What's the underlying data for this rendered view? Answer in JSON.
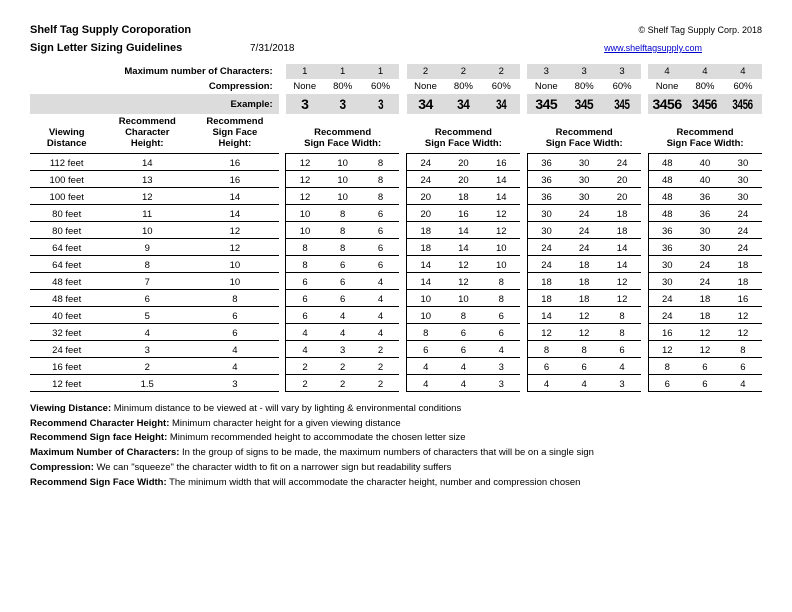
{
  "header": {
    "company": "Shelf Tag Supply Coroporation",
    "copyright": "© Shelf Tag Supply Corp. 2018",
    "subtitle": "Sign Letter Sizing Guidelines",
    "date": "7/31/2018",
    "link_text": "www.shelftagsupply.com"
  },
  "labels": {
    "max_chars": "Maximum number of Characters:",
    "compression": "Compression:",
    "example": "Example:",
    "viewing_distance": "Viewing\nDistance",
    "rec_char_height": "Recommend\nCharacter\nHeight:",
    "rec_sign_face_height": "Recommend\nSign Face\nHeight:",
    "rec_sign_face_width": "Recommend\nSign Face Width:"
  },
  "groups": [
    {
      "chars": "1",
      "compressions": [
        "None",
        "80%",
        "60%"
      ],
      "examples": [
        "3",
        "3",
        "3"
      ]
    },
    {
      "chars": "2",
      "compressions": [
        "None",
        "80%",
        "60%"
      ],
      "examples": [
        "34",
        "34",
        "34"
      ]
    },
    {
      "chars": "3",
      "compressions": [
        "None",
        "80%",
        "60%"
      ],
      "examples": [
        "345",
        "345",
        "345"
      ]
    },
    {
      "chars": "4",
      "compressions": [
        "None",
        "80%",
        "60%"
      ],
      "examples": [
        "3456",
        "3456",
        "3456"
      ]
    }
  ],
  "rows": [
    {
      "dist": "112 feet",
      "ch": "14",
      "sf": "16",
      "w": [
        [
          "12",
          "10",
          "8"
        ],
        [
          "24",
          "20",
          "16"
        ],
        [
          "36",
          "30",
          "24"
        ],
        [
          "48",
          "40",
          "30"
        ]
      ]
    },
    {
      "dist": "100 feet",
      "ch": "13",
      "sf": "16",
      "w": [
        [
          "12",
          "10",
          "8"
        ],
        [
          "24",
          "20",
          "14"
        ],
        [
          "36",
          "30",
          "20"
        ],
        [
          "48",
          "40",
          "30"
        ]
      ]
    },
    {
      "dist": "100 feet",
      "ch": "12",
      "sf": "14",
      "w": [
        [
          "12",
          "10",
          "8"
        ],
        [
          "20",
          "18",
          "14"
        ],
        [
          "36",
          "30",
          "20"
        ],
        [
          "48",
          "36",
          "30"
        ]
      ]
    },
    {
      "dist": "80 feet",
      "ch": "11",
      "sf": "14",
      "w": [
        [
          "10",
          "8",
          "6"
        ],
        [
          "20",
          "16",
          "12"
        ],
        [
          "30",
          "24",
          "18"
        ],
        [
          "48",
          "36",
          "24"
        ]
      ]
    },
    {
      "dist": "80 feet",
      "ch": "10",
      "sf": "12",
      "w": [
        [
          "10",
          "8",
          "6"
        ],
        [
          "18",
          "14",
          "12"
        ],
        [
          "30",
          "24",
          "18"
        ],
        [
          "36",
          "30",
          "24"
        ]
      ]
    },
    {
      "dist": "64 feet",
      "ch": "9",
      "sf": "12",
      "w": [
        [
          "8",
          "8",
          "6"
        ],
        [
          "18",
          "14",
          "10"
        ],
        [
          "24",
          "24",
          "14"
        ],
        [
          "36",
          "30",
          "24"
        ]
      ]
    },
    {
      "dist": "64 feet",
      "ch": "8",
      "sf": "10",
      "w": [
        [
          "8",
          "6",
          "6"
        ],
        [
          "14",
          "12",
          "10"
        ],
        [
          "24",
          "18",
          "14"
        ],
        [
          "30",
          "24",
          "18"
        ]
      ]
    },
    {
      "dist": "48 feet",
      "ch": "7",
      "sf": "10",
      "w": [
        [
          "6",
          "6",
          "4"
        ],
        [
          "14",
          "12",
          "8"
        ],
        [
          "18",
          "18",
          "12"
        ],
        [
          "30",
          "24",
          "18"
        ]
      ]
    },
    {
      "dist": "48 feet",
      "ch": "6",
      "sf": "8",
      "w": [
        [
          "6",
          "6",
          "4"
        ],
        [
          "10",
          "10",
          "8"
        ],
        [
          "18",
          "18",
          "12"
        ],
        [
          "24",
          "18",
          "16"
        ]
      ]
    },
    {
      "dist": "40 feet",
      "ch": "5",
      "sf": "6",
      "w": [
        [
          "6",
          "4",
          "4"
        ],
        [
          "10",
          "8",
          "6"
        ],
        [
          "14",
          "12",
          "8"
        ],
        [
          "24",
          "18",
          "12"
        ]
      ]
    },
    {
      "dist": "32 feet",
      "ch": "4",
      "sf": "6",
      "w": [
        [
          "4",
          "4",
          "4"
        ],
        [
          "8",
          "6",
          "6"
        ],
        [
          "12",
          "12",
          "8"
        ],
        [
          "16",
          "12",
          "12"
        ]
      ]
    },
    {
      "dist": "24 feet",
      "ch": "3",
      "sf": "4",
      "w": [
        [
          "4",
          "3",
          "2"
        ],
        [
          "6",
          "6",
          "4"
        ],
        [
          "8",
          "8",
          "6"
        ],
        [
          "12",
          "12",
          "8"
        ]
      ]
    },
    {
      "dist": "16 feet",
      "ch": "2",
      "sf": "4",
      "w": [
        [
          "2",
          "2",
          "2"
        ],
        [
          "4",
          "4",
          "3"
        ],
        [
          "6",
          "6",
          "4"
        ],
        [
          "8",
          "6",
          "6"
        ]
      ]
    },
    {
      "dist": "12 feet",
      "ch": "1.5",
      "sf": "3",
      "w": [
        [
          "2",
          "2",
          "2"
        ],
        [
          "4",
          "4",
          "3"
        ],
        [
          "4",
          "4",
          "3"
        ],
        [
          "6",
          "6",
          "4"
        ]
      ]
    }
  ],
  "footer": [
    [
      "Viewing Distance:",
      " Minimum distance to be viewed at - will vary by lighting & environmental conditions"
    ],
    [
      "Recommend Character Height:",
      " Minimum character height for a given viewing distance"
    ],
    [
      "Recommend Sign face Height:",
      " Minimum recommended height to accommodate the chosen letter size"
    ],
    [
      "Maximum Number of Characters:",
      " In the group of signs to be made, the maximum numbers of characters that will be on a single sign"
    ],
    [
      "Compression:",
      " We can \"squeeze\" the character width to fit on a narrower sign but readability suffers"
    ],
    [
      "Recommend Sign Face Width:",
      " The minimum width that will accommodate the character height, number and compression chosen"
    ]
  ],
  "style": {
    "shade_bg": "#dcdcdc",
    "border_color": "#000000",
    "text_color": "#000000",
    "link_color": "#0000cc",
    "example_font_size": 14,
    "body_font_size": 10
  }
}
